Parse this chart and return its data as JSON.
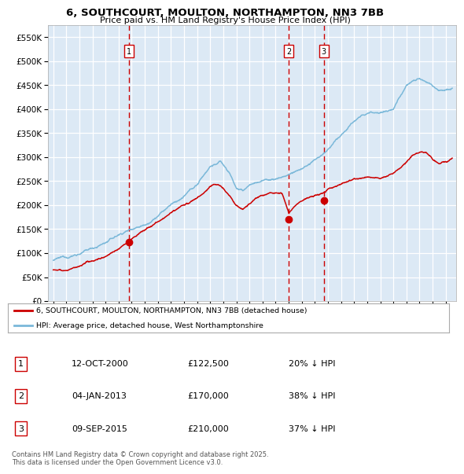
{
  "title_line1": "6, SOUTHCOURT, MOULTON, NORTHAMPTON, NN3 7BB",
  "title_line2": "Price paid vs. HM Land Registry's House Price Index (HPI)",
  "legend_line1": "6, SOUTHCOURT, MOULTON, NORTHAMPTON, NN3 7BB (detached house)",
  "legend_line2": "HPI: Average price, detached house, West Northamptonshire",
  "footnote": "Contains HM Land Registry data © Crown copyright and database right 2025.\nThis data is licensed under the Open Government Licence v3.0.",
  "hpi_color": "#7ab8d9",
  "price_color": "#cc0000",
  "vline_color": "#cc0000",
  "bg_color": "#dce9f5",
  "grid_color": "#ffffff",
  "sales": [
    {
      "num": 1,
      "date_x": 2000.79,
      "price": 122500,
      "label": "1",
      "date_str": "12-OCT-2000",
      "pct": "20%"
    },
    {
      "num": 2,
      "date_x": 2013.01,
      "price": 170000,
      "label": "2",
      "date_str": "04-JAN-2013",
      "pct": "38%"
    },
    {
      "num": 3,
      "date_x": 2015.69,
      "price": 210000,
      "label": "3",
      "date_str": "09-SEP-2015",
      "pct": "37%"
    }
  ],
  "table_rows": [
    [
      "1",
      "12-OCT-2000",
      "£122,500",
      "20% ↓ HPI"
    ],
    [
      "2",
      "04-JAN-2013",
      "£170,000",
      "38% ↓ HPI"
    ],
    [
      "3",
      "09-SEP-2015",
      "£210,000",
      "37% ↓ HPI"
    ]
  ],
  "ylim_max": 575000,
  "ytick_step": 50000,
  "xlim_start": 1994.6,
  "xlim_end": 2025.8,
  "hpi_anchors_x": [
    1995.0,
    1996.0,
    1997.0,
    1998.0,
    1999.0,
    2000.0,
    2001.0,
    2002.0,
    2003.0,
    2004.0,
    2005.0,
    2006.0,
    2007.0,
    2007.8,
    2008.5,
    2009.0,
    2009.5,
    2010.0,
    2011.0,
    2012.0,
    2013.0,
    2014.0,
    2015.0,
    2016.0,
    2017.0,
    2018.0,
    2019.0,
    2020.0,
    2021.0,
    2022.0,
    2022.5,
    2023.0,
    2023.5,
    2024.0,
    2024.5,
    2025.0,
    2025.5
  ],
  "hpi_anchors_y": [
    85000,
    90000,
    100000,
    110000,
    123000,
    138000,
    152000,
    165000,
    185000,
    207000,
    222000,
    245000,
    285000,
    295000,
    270000,
    240000,
    232000,
    245000,
    255000,
    258000,
    268000,
    280000,
    295000,
    315000,
    345000,
    375000,
    390000,
    395000,
    400000,
    455000,
    465000,
    470000,
    460000,
    450000,
    445000,
    450000,
    455000
  ],
  "pp_anchors_x": [
    1995.0,
    1996.0,
    1997.0,
    1998.0,
    1999.0,
    2000.0,
    2000.79,
    2001.5,
    2002.5,
    2003.5,
    2004.5,
    2005.5,
    2006.5,
    2007.0,
    2007.5,
    2008.0,
    2008.5,
    2009.0,
    2009.5,
    2010.0,
    2010.5,
    2011.0,
    2011.5,
    2012.0,
    2012.5,
    2013.01,
    2013.5,
    2014.0,
    2014.5,
    2015.0,
    2015.69,
    2016.0,
    2016.5,
    2017.0,
    2017.5,
    2018.0,
    2019.0,
    2020.0,
    2021.0,
    2021.5,
    2022.0,
    2022.5,
    2023.0,
    2023.5,
    2024.0,
    2024.5,
    2025.0,
    2025.5
  ],
  "pp_anchors_y": [
    65000,
    68000,
    73000,
    80000,
    90000,
    108000,
    122500,
    138000,
    155000,
    172000,
    188000,
    200000,
    215000,
    230000,
    235000,
    225000,
    210000,
    190000,
    182000,
    195000,
    205000,
    210000,
    215000,
    215000,
    212000,
    170000,
    185000,
    195000,
    200000,
    205000,
    210000,
    218000,
    225000,
    232000,
    238000,
    245000,
    250000,
    248000,
    258000,
    265000,
    278000,
    293000,
    300000,
    298000,
    285000,
    280000,
    283000,
    288000
  ]
}
